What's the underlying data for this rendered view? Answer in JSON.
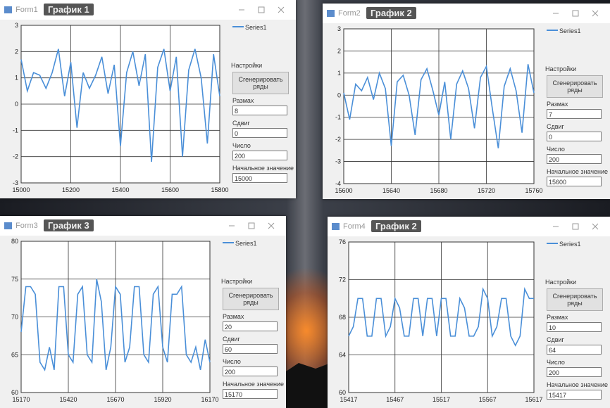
{
  "windows": [
    {
      "form_title": "Form1",
      "caption": "График 1",
      "chart": {
        "type": "line",
        "grid": true,
        "x": [
          15000,
          15025,
          15050,
          15075,
          15100,
          15125,
          15150,
          15175,
          15200,
          15225,
          15250,
          15275,
          15300,
          15325,
          15350,
          15375,
          15400,
          15425,
          15450,
          15475,
          15500,
          15525,
          15550,
          15575,
          15600,
          15625,
          15650,
          15675,
          15700,
          15725,
          15750,
          15775,
          15800
        ],
        "series": [
          {
            "name": "Series1",
            "color": "#4a8fd8",
            "values": [
              1.7,
              0.5,
              1.2,
              1.1,
              0.6,
              1.2,
              2.1,
              0.3,
              1.6,
              -0.9,
              1.2,
              0.6,
              1.1,
              1.8,
              0.4,
              1.5,
              -1.6,
              1.2,
              2.0,
              0.7,
              1.9,
              -2.2,
              1.4,
              2.1,
              0.5,
              1.8,
              -2.0,
              1.3,
              2.1,
              1.0,
              -1.5,
              1.9,
              0.3
            ]
          }
        ],
        "xlim": [
          15000,
          15800
        ],
        "xticks": [
          15000,
          15200,
          15400,
          15600,
          15800
        ],
        "ylim": [
          -3,
          3
        ],
        "yticks": [
          -3,
          -2,
          -1,
          0,
          1,
          2,
          3
        ]
      },
      "panel": {
        "group": "Настройки",
        "button": "Сгенерировать ряды",
        "fields": [
          {
            "label": "Размах",
            "value": "8"
          },
          {
            "label": "Сдвиг",
            "value": "0"
          },
          {
            "label": "Число",
            "value": "200"
          },
          {
            "label": "Начальное значение",
            "value": "15000"
          }
        ]
      }
    },
    {
      "form_title": "Form2",
      "caption": "График 2",
      "chart": {
        "type": "line",
        "grid": true,
        "x": [
          15600,
          15605,
          15610,
          15615,
          15620,
          15625,
          15630,
          15635,
          15640,
          15645,
          15650,
          15655,
          15660,
          15665,
          15670,
          15675,
          15680,
          15685,
          15690,
          15695,
          15700,
          15705,
          15710,
          15715,
          15720,
          15725,
          15730,
          15735,
          15740,
          15745,
          15750,
          15755,
          15760
        ],
        "series": [
          {
            "name": "Series1",
            "color": "#4a8fd8",
            "values": [
              0.1,
              -1.1,
              0.5,
              0.2,
              0.8,
              -0.2,
              1.0,
              0.3,
              -2.3,
              0.6,
              0.9,
              0.0,
              -1.8,
              0.7,
              1.2,
              0.2,
              -0.9,
              0.6,
              -2.0,
              0.5,
              1.1,
              0.3,
              -1.5,
              0.8,
              1.3,
              -0.6,
              -2.4,
              0.4,
              1.2,
              0.2,
              -1.7,
              1.4,
              0.1
            ]
          }
        ],
        "xlim": [
          15600,
          15760
        ],
        "xticks": [
          15600,
          15640,
          15680,
          15720,
          15760
        ],
        "ylim": [
          -4,
          3
        ],
        "yticks": [
          -4,
          -3,
          -2,
          -1,
          0,
          1,
          2,
          3
        ]
      },
      "panel": {
        "group": "Настройки",
        "button": "Сгенерировать ряды",
        "fields": [
          {
            "label": "Размах",
            "value": "7"
          },
          {
            "label": "Сдвиг",
            "value": "0"
          },
          {
            "label": "Число",
            "value": "200"
          },
          {
            "label": "Начальное значение",
            "value": "15600"
          }
        ]
      }
    },
    {
      "form_title": "Form3",
      "caption": "График 3",
      "chart": {
        "type": "line",
        "grid": true,
        "x": [
          15170,
          15195,
          15220,
          15245,
          15270,
          15295,
          15320,
          15345,
          15370,
          15395,
          15420,
          15445,
          15470,
          15495,
          15520,
          15545,
          15570,
          15595,
          15620,
          15645,
          15670,
          15695,
          15720,
          15745,
          15770,
          15795,
          15820,
          15845,
          15870,
          15895,
          15920,
          15945,
          15970,
          15995,
          16020,
          16045,
          16070,
          16095,
          16120,
          16145,
          16170
        ],
        "series": [
          {
            "name": "Series1",
            "color": "#4a8fd8",
            "values": [
              68,
              74,
              74,
              73,
              64,
              63,
              66,
              63,
              74,
              74,
              65,
              64,
              73,
              74,
              65,
              64,
              75,
              72,
              63,
              66,
              74,
              73,
              64,
              66,
              74,
              74,
              65,
              64,
              73,
              74,
              66,
              64,
              73,
              73,
              74,
              65,
              64,
              66,
              63,
              67,
              64
            ]
          }
        ],
        "xlim": [
          15170,
          16170
        ],
        "xticks": [
          15170,
          15420,
          15670,
          15920,
          16170
        ],
        "ylim": [
          60,
          80
        ],
        "yticks": [
          60,
          65,
          70,
          75,
          80
        ]
      },
      "panel": {
        "group": "Настройки",
        "button": "Сгенерировать ряды",
        "fields": [
          {
            "label": "Размах",
            "value": "20"
          },
          {
            "label": "Сдвиг",
            "value": "60"
          },
          {
            "label": "Число",
            "value": "200"
          },
          {
            "label": "Начальное значение",
            "value": "15170"
          }
        ]
      }
    },
    {
      "form_title": "Form4",
      "caption": "График 2",
      "chart": {
        "type": "line",
        "grid": true,
        "x": [
          15417,
          15422,
          15427,
          15432,
          15437,
          15442,
          15447,
          15452,
          15457,
          15462,
          15467,
          15472,
          15477,
          15482,
          15487,
          15492,
          15497,
          15502,
          15507,
          15512,
          15517,
          15522,
          15527,
          15532,
          15537,
          15542,
          15547,
          15552,
          15557,
          15562,
          15567,
          15572,
          15577,
          15582,
          15587,
          15592,
          15597,
          15602,
          15607,
          15612,
          15617
        ],
        "series": [
          {
            "name": "Series1",
            "color": "#4a8fd8",
            "values": [
              66,
              67,
              70,
              70,
              66,
              66,
              70,
              70,
              66,
              67,
              70,
              69,
              66,
              66,
              70,
              70,
              66,
              70,
              70,
              66,
              70,
              70,
              66,
              66,
              70,
              69,
              66,
              66,
              67,
              71,
              70,
              66,
              67,
              70,
              70,
              66,
              65,
              66,
              71,
              70,
              70
            ]
          }
        ],
        "xlim": [
          15417,
          15617
        ],
        "xticks": [
          15417,
          15467,
          15517,
          15567,
          15617
        ],
        "ylim": [
          60,
          76
        ],
        "yticks": [
          60,
          64,
          68,
          72,
          76
        ]
      },
      "panel": {
        "group": "Настройки",
        "button": "Сгенерировать ряды",
        "fields": [
          {
            "label": "Размах",
            "value": "10"
          },
          {
            "label": "Сдвиг",
            "value": "64"
          },
          {
            "label": "Число",
            "value": "200"
          },
          {
            "label": "Начальное значение",
            "value": "15417"
          }
        ]
      }
    }
  ]
}
